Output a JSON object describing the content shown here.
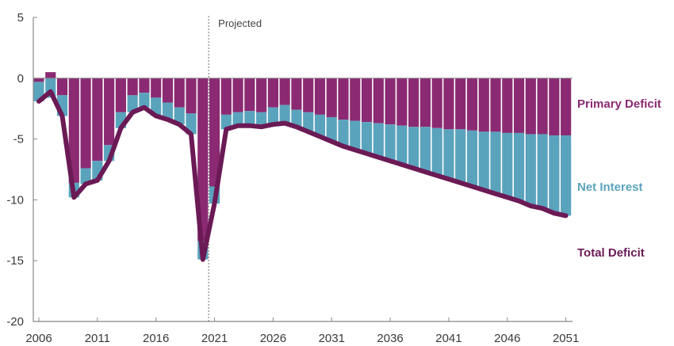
{
  "chart_data": {
    "type": "bar",
    "subtype": "stacked-bar-with-line",
    "title": "",
    "xlabel": "",
    "ylabel": "",
    "ylim": [
      -20,
      5
    ],
    "yticks": [
      5,
      0,
      -5,
      -10,
      -15,
      -20
    ],
    "ytick_labels": [
      "5",
      "0",
      "-5",
      "-10",
      "-15",
      "-20"
    ],
    "xticks": [
      2006,
      2011,
      2016,
      2021,
      2026,
      2031,
      2036,
      2041,
      2046,
      2051
    ],
    "xtick_labels": [
      "2006",
      "2011",
      "2016",
      "2021",
      "2026",
      "2031",
      "2036",
      "2041",
      "2046",
      "2051"
    ],
    "grid": false,
    "projection_start": 2020.5,
    "projection_label": "Projected",
    "colors": {
      "primary": "#8b2a72",
      "interest": "#5aa3bd",
      "total": "#6b1a55",
      "axis": "#888888"
    },
    "categories": [
      2006,
      2007,
      2008,
      2009,
      2010,
      2011,
      2012,
      2013,
      2014,
      2015,
      2016,
      2017,
      2018,
      2019,
      2020,
      2021,
      2022,
      2023,
      2024,
      2025,
      2026,
      2027,
      2028,
      2029,
      2030,
      2031,
      2032,
      2033,
      2034,
      2035,
      2036,
      2037,
      2038,
      2039,
      2040,
      2041,
      2042,
      2043,
      2044,
      2045,
      2046,
      2047,
      2048,
      2049,
      2050,
      2051
    ],
    "series": [
      {
        "name": "Primary Deficit",
        "label_position": "right-top",
        "values": [
          -0.3,
          0.5,
          -1.4,
          -8.6,
          -7.4,
          -6.8,
          -5.5,
          -2.8,
          -1.4,
          -1.2,
          -1.6,
          -2.0,
          -2.4,
          -2.9,
          -13.4,
          -8.9,
          -3.0,
          -2.8,
          -2.7,
          -2.8,
          -2.4,
          -2.2,
          -2.6,
          -2.8,
          -3.0,
          -3.2,
          -3.4,
          -3.5,
          -3.6,
          -3.7,
          -3.8,
          -3.9,
          -4.0,
          -4.0,
          -4.1,
          -4.2,
          -4.2,
          -4.3,
          -4.4,
          -4.4,
          -4.5,
          -4.5,
          -4.6,
          -4.6,
          -4.7,
          -4.7
        ]
      },
      {
        "name": "Net Interest",
        "label_position": "right-middle",
        "values": [
          -1.6,
          -1.6,
          -1.7,
          -1.2,
          -1.3,
          -1.6,
          -1.3,
          -1.3,
          -1.4,
          -1.2,
          -1.5,
          -1.4,
          -1.4,
          -1.7,
          -1.5,
          -1.4,
          -1.2,
          -1.1,
          -1.2,
          -1.2,
          -1.4,
          -1.5,
          -1.4,
          -1.6,
          -1.8,
          -2.0,
          -2.2,
          -2.4,
          -2.6,
          -2.8,
          -3.0,
          -3.2,
          -3.4,
          -3.7,
          -3.9,
          -4.1,
          -4.4,
          -4.6,
          -4.8,
          -5.1,
          -5.3,
          -5.6,
          -5.9,
          -6.1,
          -6.4,
          -6.6
        ]
      },
      {
        "name": "Total Deficit",
        "type": "line",
        "label_position": "right-bottom",
        "values": [
          -1.9,
          -1.1,
          -3.1,
          -9.8,
          -8.7,
          -8.4,
          -6.8,
          -4.1,
          -2.8,
          -2.4,
          -3.1,
          -3.4,
          -3.8,
          -4.6,
          -14.9,
          -10.3,
          -4.2,
          -3.9,
          -3.9,
          -4.0,
          -3.8,
          -3.7,
          -4.0,
          -4.4,
          -4.8,
          -5.2,
          -5.6,
          -5.9,
          -6.2,
          -6.5,
          -6.8,
          -7.1,
          -7.4,
          -7.7,
          -8.0,
          -8.3,
          -8.6,
          -8.9,
          -9.2,
          -9.5,
          -9.8,
          -10.1,
          -10.5,
          -10.7,
          -11.1,
          -11.3
        ]
      }
    ],
    "end_labels": {
      "primary": "Primary Deficit",
      "interest": "Net Interest",
      "total": "Total Deficit"
    }
  }
}
